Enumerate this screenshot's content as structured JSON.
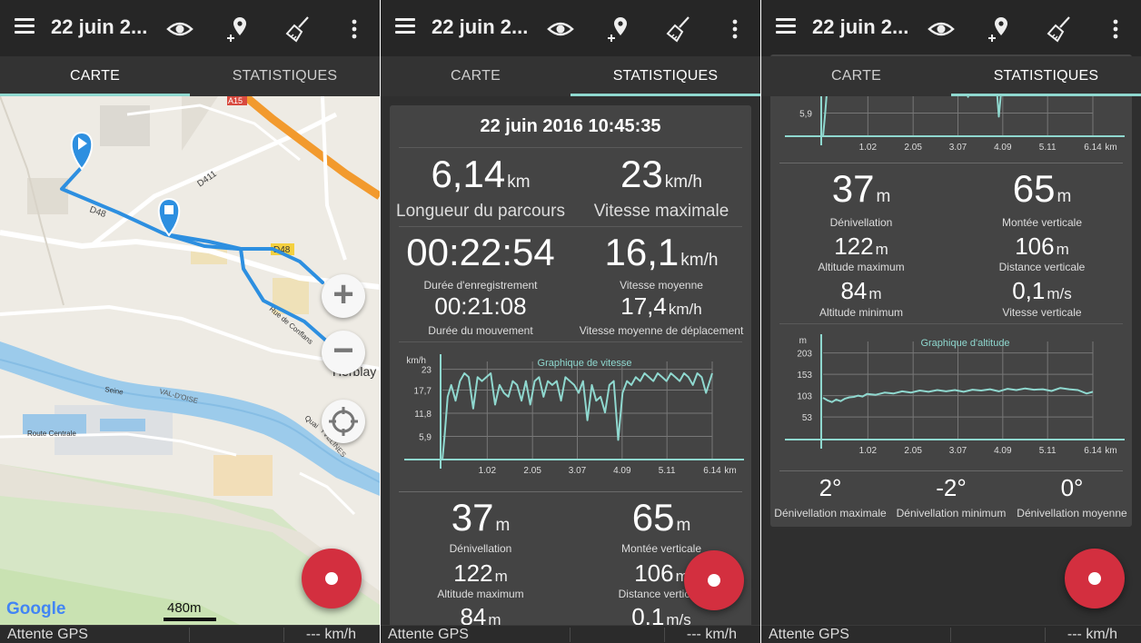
{
  "colors": {
    "accent": "#8fd8cf",
    "fab": "#d32f3f",
    "topbar": "#262626",
    "route": "#2d8fe0"
  },
  "app": {
    "title": "22 juin 2..."
  },
  "tabs": {
    "map": "CARTE",
    "stats": "STATISTIQUES"
  },
  "bottom": {
    "gps": "Attente GPS",
    "speed": "--- km/h"
  },
  "map": {
    "roads": {
      "a15": "A15",
      "d411": "D411",
      "d48a": "D48",
      "d48b": "D48",
      "conflans": "Rue de Conflans",
      "seine": "Seine",
      "valdoise": "VAL-D'OISE",
      "quai": "Quai",
      "yvelines": "YVELINES",
      "centrale": "Route Centrale",
      "herblay": "Herblay"
    },
    "zoom_in": "+",
    "zoom_out": "−",
    "google": "Google",
    "scale": "480m"
  },
  "stats": {
    "date": "22 juin 2016 10:45:35",
    "length": {
      "value": "6,14",
      "unit": "km",
      "label": "Longueur du parcours"
    },
    "maxspeed": {
      "value": "23",
      "unit": "km/h",
      "label": "Vitesse maximale"
    },
    "duration": {
      "value": "00:22:54",
      "label": "Durée d'enregistrement"
    },
    "avgspeed": {
      "value": "16,1",
      "unit": "km/h",
      "label": "Vitesse moyenne"
    },
    "movetime": {
      "value": "00:21:08",
      "label": "Durée du mouvement"
    },
    "avgmove": {
      "value": "17,4",
      "unit": "km/h",
      "label": "Vitesse moyenne de déplacement"
    },
    "denivel": {
      "value": "37",
      "unit": "m",
      "label": "Dénivellation"
    },
    "montee": {
      "value": "65",
      "unit": "m",
      "label": "Montée verticale"
    },
    "altmax": {
      "value": "122",
      "unit": "m",
      "label": "Altitude maximum"
    },
    "distvert": {
      "value": "106",
      "unit": "m",
      "label": "Distance verticale"
    },
    "altmin": {
      "value": "84",
      "unit": "m",
      "label": "Altitude minimum"
    },
    "vitvert": {
      "value": "0,1",
      "unit": "m/s",
      "label": "Vitesse verticale"
    },
    "pente_max": {
      "value": "2°",
      "label": "Dénivellation maximale"
    },
    "pente_min": {
      "value": "-2°",
      "label": "Dénivellation minimum"
    },
    "pente_moy": {
      "value": "0°",
      "label": "Dénivellation moyenne"
    }
  },
  "chart_data": [
    {
      "type": "line",
      "title": "Graphique de vitesse",
      "ylabel": "km/h",
      "xlabel": "km",
      "yticks": [
        "23",
        "17,7",
        "11,8",
        "5,9"
      ],
      "xticks": [
        "1.02",
        "2.05",
        "3.07",
        "4.09",
        "5.11",
        "6.14"
      ],
      "ylim": [
        0,
        25
      ],
      "xlim": [
        0,
        6.14
      ],
      "series": [
        {
          "values_x": [
            0,
            0.05,
            0.12,
            0.2,
            0.3,
            0.4,
            0.5,
            0.6,
            0.7,
            0.8,
            0.9,
            1.0,
            1.1,
            1.2,
            1.3,
            1.4,
            1.5,
            1.6,
            1.7,
            1.8,
            1.9,
            2.0,
            2.1,
            2.2,
            2.3,
            2.4,
            2.5,
            2.6,
            2.7,
            2.8,
            2.9,
            3.0,
            3.1,
            3.2,
            3.3,
            3.4,
            3.5,
            3.6,
            3.7,
            3.8,
            3.9,
            4.0,
            4.1,
            4.2,
            4.3,
            4.4,
            4.5,
            4.6,
            4.7,
            4.8,
            4.9,
            5.0,
            5.1,
            5.2,
            5.3,
            5.4,
            5.5,
            5.6,
            5.7,
            5.8,
            5.9,
            6.0,
            6.14
          ],
          "values_y": [
            0,
            6,
            16,
            19,
            15,
            20,
            22,
            21,
            13,
            21,
            20,
            21,
            22,
            14,
            19,
            17,
            16,
            20,
            19,
            15,
            20,
            14,
            20,
            21,
            16,
            20,
            19,
            20,
            15,
            21,
            20,
            19,
            17,
            20,
            10,
            19,
            15,
            16,
            12,
            19,
            20,
            5,
            17,
            20,
            19,
            21,
            20,
            22,
            21,
            20,
            22,
            21,
            20,
            22,
            21,
            20,
            22,
            21,
            19,
            22,
            21,
            17,
            22
          ]
        }
      ]
    },
    {
      "type": "line",
      "title": "Graphique d'altitude",
      "ylabel": "m",
      "xlabel": "km",
      "yticks": [
        "203",
        "153",
        "103",
        "53"
      ],
      "xticks": [
        "1.02",
        "2.05",
        "3.07",
        "4.09",
        "5.11",
        "6.14"
      ],
      "ylim": [
        0,
        230
      ],
      "xlim": [
        0,
        6.14
      ],
      "series": [
        {
          "values_x": [
            0,
            0.1,
            0.2,
            0.3,
            0.4,
            0.5,
            0.6,
            0.7,
            0.8,
            0.9,
            1.0,
            1.2,
            1.4,
            1.6,
            1.8,
            2.0,
            2.2,
            2.4,
            2.6,
            2.8,
            3.0,
            3.2,
            3.4,
            3.6,
            3.8,
            4.0,
            4.2,
            4.4,
            4.6,
            4.8,
            5.0,
            5.2,
            5.4,
            5.6,
            5.8,
            6.0,
            6.14
          ],
          "values_y": [
            98,
            92,
            88,
            94,
            90,
            96,
            99,
            100,
            103,
            101,
            107,
            105,
            110,
            108,
            113,
            110,
            115,
            112,
            116,
            113,
            116,
            112,
            117,
            115,
            118,
            113,
            119,
            116,
            120,
            117,
            118,
            114,
            121,
            118,
            116,
            108,
            112
          ]
        }
      ]
    }
  ]
}
